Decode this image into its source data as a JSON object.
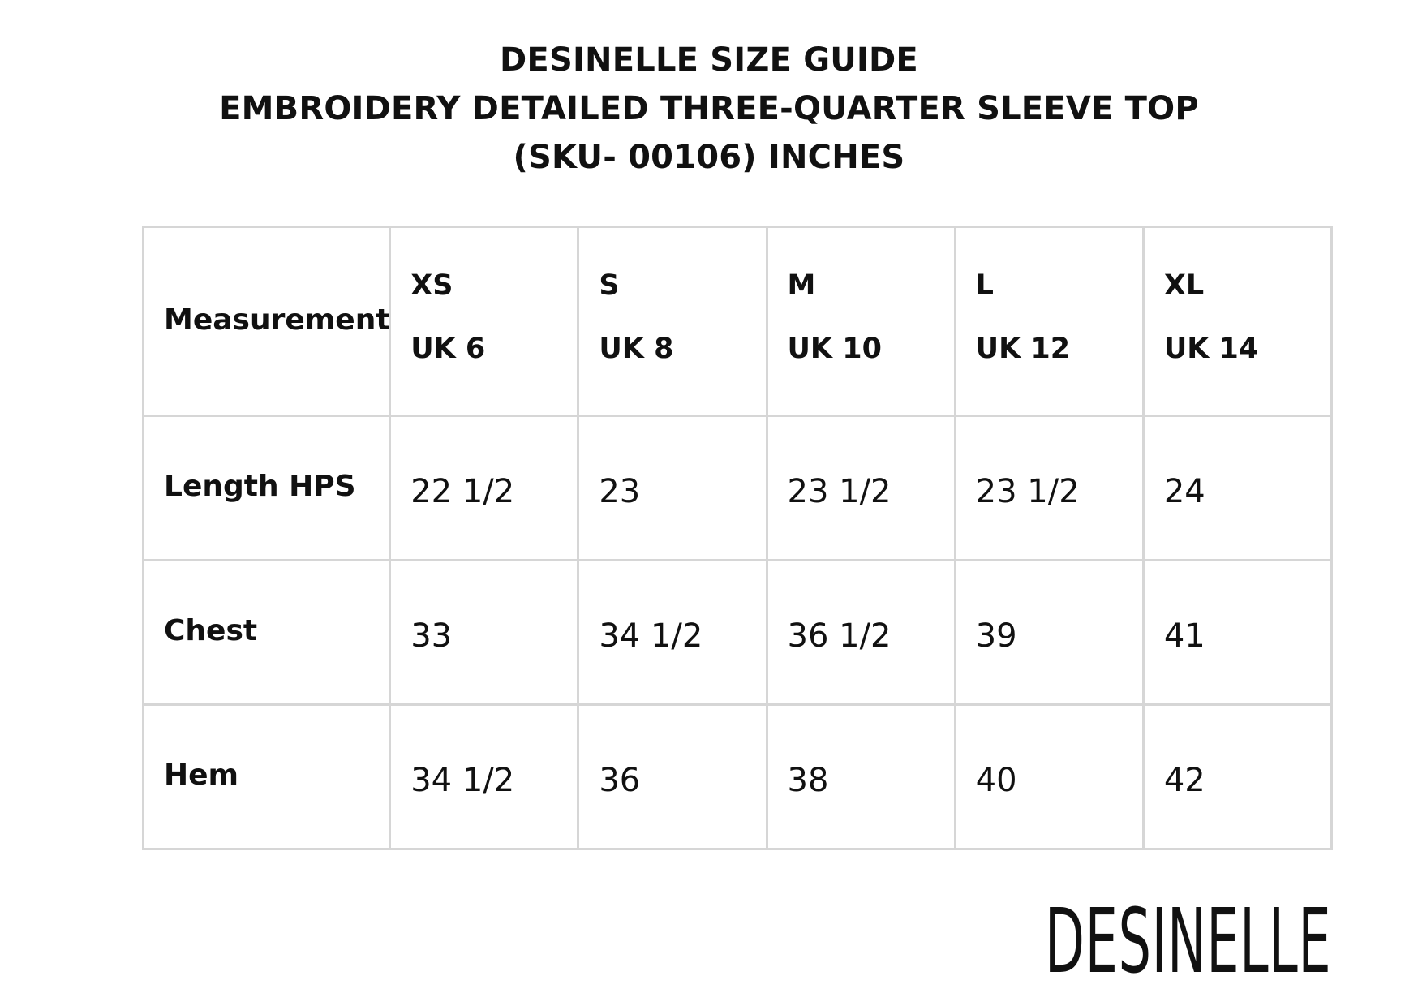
{
  "header": {
    "title_line_1": "DESINELLE SIZE GUIDE",
    "title_line_2": "EMBROIDERY DETAILED THREE-QUARTER SLEEVE TOP",
    "title_line_3": "(SKU- 00106) INCHES"
  },
  "table": {
    "corner_label": "Measurement",
    "sizes": [
      {
        "code": "XS",
        "uk": "UK 6"
      },
      {
        "code": "S",
        "uk": "UK 8"
      },
      {
        "code": "M",
        "uk": "UK 10"
      },
      {
        "code": "L",
        "uk": "UK 12"
      },
      {
        "code": "XL",
        "uk": "UK 14"
      }
    ],
    "rows": [
      {
        "label": "Length HPS",
        "values": [
          "22 1/2",
          "23",
          "23 1/2",
          "23 1/2",
          "24"
        ]
      },
      {
        "label": "Chest",
        "values": [
          "33",
          "34 1/2",
          "36 1/2",
          "39",
          "41"
        ]
      },
      {
        "label": "Hem",
        "values": [
          "34 1/2",
          "36",
          "38",
          "40",
          "42"
        ]
      }
    ]
  },
  "brand": {
    "logo_text": "DESINELLE"
  },
  "colors": {
    "text": "#111111",
    "grid_border": "#d6d6d6",
    "background": "#ffffff"
  }
}
